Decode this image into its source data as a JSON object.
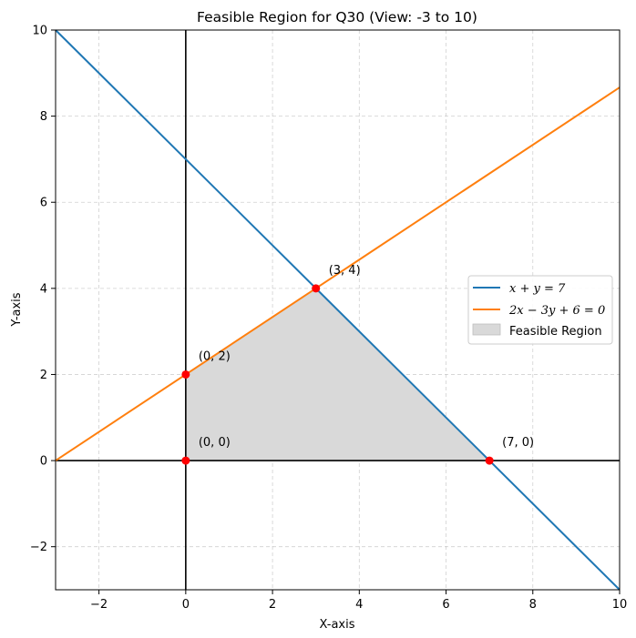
{
  "chart_data": {
    "type": "line",
    "title": "Feasible Region for Q30 (View: -3 to 10)",
    "xlabel": "X-axis",
    "ylabel": "Y-axis",
    "xlim": [
      -3,
      10
    ],
    "ylim": [
      -3,
      10
    ],
    "xticks": [
      -2,
      0,
      2,
      4,
      6,
      8,
      10
    ],
    "yticks": [
      -2,
      0,
      2,
      4,
      6,
      8,
      10
    ],
    "xtick_labels": [
      "−2",
      "0",
      "2",
      "4",
      "6",
      "8",
      "10"
    ],
    "ytick_labels": [
      "−2",
      "0",
      "2",
      "4",
      "6",
      "8",
      "10"
    ],
    "grid": true,
    "legend_position": "center-right",
    "series": [
      {
        "name": "x + y = 7",
        "color": "#1f77b4",
        "x": [
          -3,
          10
        ],
        "y": [
          10,
          -3
        ]
      },
      {
        "name": "2x − 3y + 6 = 0",
        "color": "#ff7f0e",
        "x": [
          -3,
          10
        ],
        "y": [
          0,
          8.667
        ]
      }
    ],
    "feasible_region": {
      "name": "Feasible Region",
      "color": "#d9d9d9",
      "vertices": [
        [
          0,
          0
        ],
        [
          0,
          2
        ],
        [
          3,
          4
        ],
        [
          7,
          0
        ]
      ]
    },
    "points": [
      {
        "x": 0,
        "y": 0,
        "label": "(0, 0)"
      },
      {
        "x": 0,
        "y": 2,
        "label": "(0, 2)"
      },
      {
        "x": 3,
        "y": 4,
        "label": "(3, 4)"
      },
      {
        "x": 7,
        "y": 0,
        "label": "(7, 0)"
      }
    ],
    "point_color": "#ff0000"
  }
}
